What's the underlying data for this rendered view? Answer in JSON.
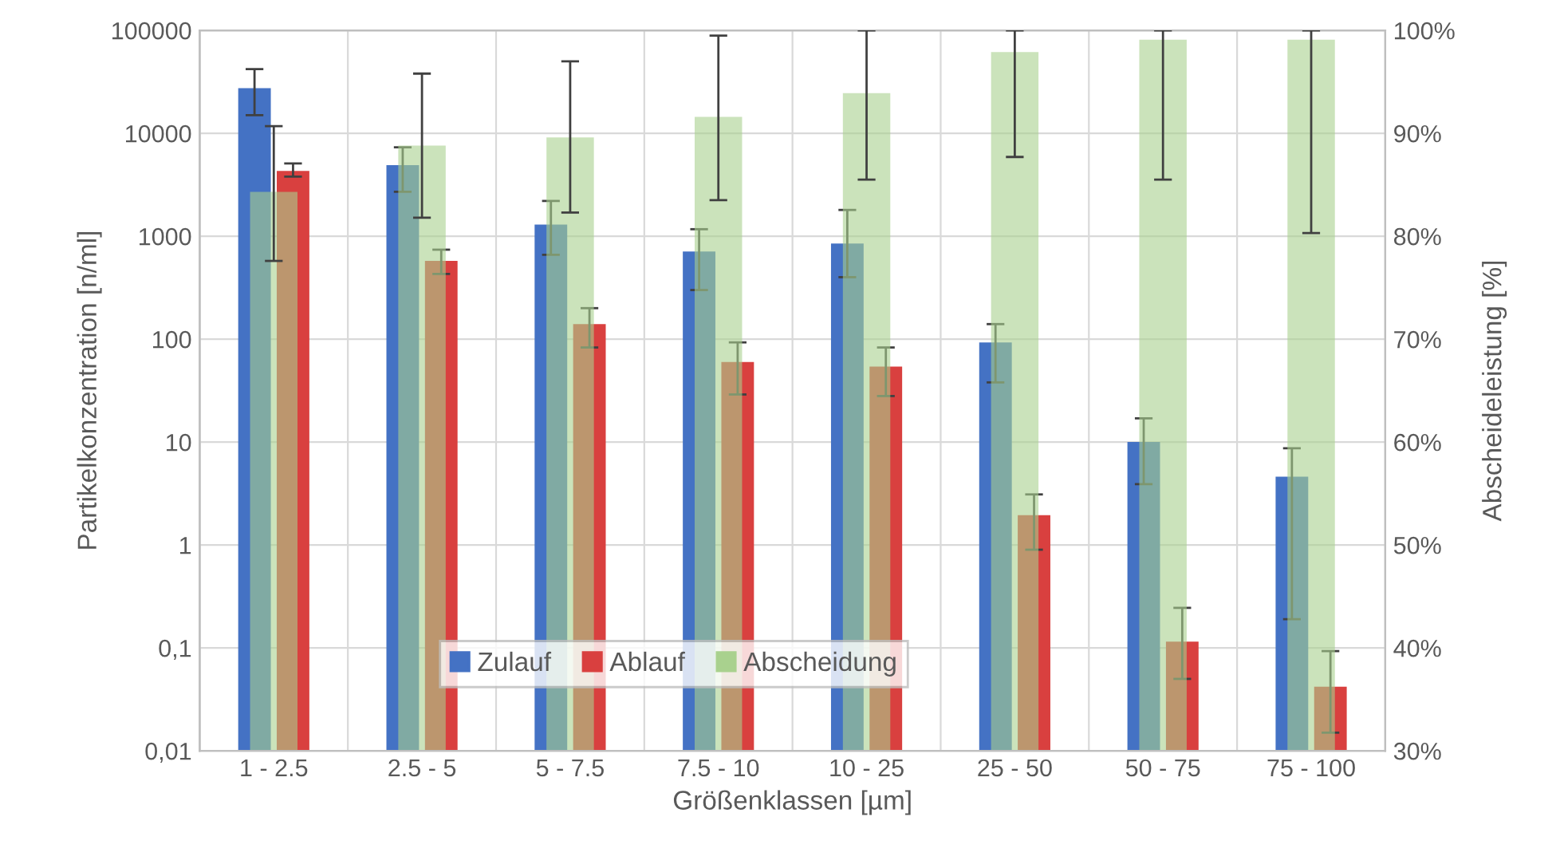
{
  "chart_data": {
    "type": "bar",
    "xlabel": "Größenklassen [µm]",
    "ylabel": "Partikelkonzentration [n/ml]",
    "y2label": "Abscheideleistung [%]",
    "categories": [
      "1 - 2.5",
      "2.5 - 5",
      "5 - 7.5",
      "7.5 - 10",
      "10 - 25",
      "25 - 50",
      "50 - 75",
      "75 - 100"
    ],
    "series": [
      {
        "name": "Zulauf",
        "color": "#4472c4",
        "values": [
          27500,
          4900,
          1300,
          710,
          850,
          93,
          10,
          4.6
        ],
        "errors": [
          [
            15000,
            42000
          ],
          [
            2700,
            7300
          ],
          [
            660,
            2200
          ],
          [
            300,
            1170
          ],
          [
            400,
            1800
          ],
          [
            38,
            140
          ],
          [
            3.9,
            17
          ],
          [
            0.19,
            8.7
          ]
        ]
      },
      {
        "name": "Ablauf",
        "color": "#d9403f",
        "values": [
          4300,
          575,
          140,
          60,
          54,
          1.95,
          0.115,
          0.042
        ],
        "errors": [
          [
            3800,
            5100
          ],
          [
            430,
            740
          ],
          [
            83,
            200
          ],
          [
            29,
            93
          ],
          [
            28,
            83
          ],
          [
            0.9,
            3.1
          ],
          [
            0.05,
            0.245
          ],
          [
            0.015,
            0.093
          ]
        ]
      },
      {
        "name": "Abscheidung",
        "color": "#a9d18e",
        "axis": "y2",
        "values": [
          84.3,
          88.8,
          89.6,
          91.6,
          93.9,
          97.9,
          99.1,
          99.1
        ],
        "errors": [
          [
            77.6,
            90.7
          ],
          [
            81.8,
            95.8
          ],
          [
            82.3,
            97.0
          ],
          [
            83.5,
            99.5
          ],
          [
            85.5,
            100
          ],
          [
            87.7,
            100
          ],
          [
            85.5,
            100
          ],
          [
            80.3,
            100
          ]
        ]
      }
    ],
    "log": "y",
    "ylim": [
      0.01,
      100000
    ],
    "yticks": [
      {
        "value": 0.01,
        "label": "0,01"
      },
      {
        "value": 0.1,
        "label": "0,1"
      },
      1,
      10,
      100,
      1000,
      10000,
      100000
    ],
    "y2lim": [
      30,
      100
    ],
    "y2ticks": [
      {
        "value": 30,
        "label": "30%"
      },
      {
        "value": 40,
        "label": "40%"
      },
      {
        "value": 50,
        "label": "50%"
      },
      {
        "value": 60,
        "label": "60%"
      },
      {
        "value": 70,
        "label": "70%"
      },
      {
        "value": 80,
        "label": "80%"
      },
      {
        "value": 90,
        "label": "90%"
      },
      {
        "value": 100,
        "label": "100%"
      }
    ],
    "grid": true,
    "legend": "bottom"
  }
}
